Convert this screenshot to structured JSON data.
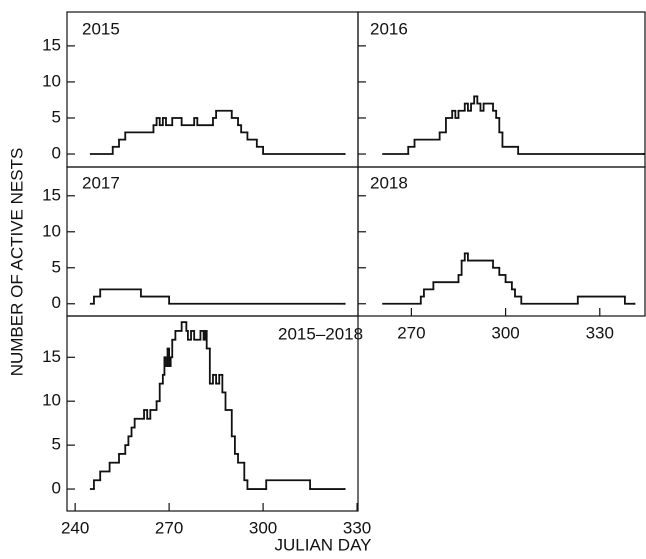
{
  "figure": {
    "xlabel": "JULIAN DAY",
    "ylabel": "NUMBER OF ACTIVE NESTS"
  },
  "chart_data": [
    {
      "type": "line",
      "drawstyle": "steps-post",
      "title": "2015",
      "color": "#111111",
      "x": [
        245,
        252,
        254,
        256,
        265,
        266,
        267,
        268,
        269,
        271,
        274,
        278,
        279,
        284,
        285,
        290,
        292,
        293,
        295,
        298,
        300,
        326
      ],
      "values": [
        0,
        1,
        2,
        3,
        4,
        5,
        4,
        5,
        4,
        5,
        4,
        5,
        4,
        5,
        6,
        5,
        4,
        3,
        2,
        1,
        0,
        0
      ],
      "xlim": [
        237.4,
        330.3
      ],
      "ylim": [
        -1.8,
        19.7
      ],
      "yticks": [
        0,
        5,
        10,
        15
      ]
    },
    {
      "type": "line",
      "drawstyle": "steps-post",
      "title": "2016",
      "color": "#111111",
      "x": [
        261,
        269,
        271,
        279,
        281,
        283,
        284,
        285,
        287,
        288,
        289,
        290,
        291,
        292,
        293,
        296,
        297,
        298,
        299,
        304,
        344
      ],
      "values": [
        0,
        1,
        2,
        3,
        5,
        6,
        5,
        6,
        7,
        6,
        7,
        8,
        7,
        6,
        7,
        6,
        5,
        3,
        1,
        0,
        0
      ],
      "xlim": [
        253.0,
        344.4
      ],
      "ylim": [
        -1.8,
        19.7
      ],
      "yticks": [
        0,
        5,
        10,
        15
      ]
    },
    {
      "type": "line",
      "drawstyle": "steps-post",
      "title": "2017",
      "color": "#111111",
      "x": [
        245,
        246,
        248,
        261,
        270,
        326
      ],
      "values": [
        0,
        1,
        2,
        1,
        0,
        0
      ],
      "xlim": [
        237.4,
        330.3
      ],
      "ylim": [
        -1.7,
        19.0
      ],
      "yticks": [
        0,
        5,
        10,
        15
      ]
    },
    {
      "type": "line",
      "drawstyle": "steps-post",
      "title": "2018",
      "color": "#111111",
      "x": [
        261,
        273,
        274,
        277,
        285,
        286,
        287,
        288,
        296,
        298,
        300,
        302,
        303,
        305,
        323,
        338,
        341
      ],
      "values": [
        0,
        1,
        2,
        3,
        4,
        6,
        7,
        6,
        5,
        4,
        3,
        2,
        1,
        0,
        1,
        0,
        0
      ],
      "xlim": [
        253.0,
        344.4
      ],
      "ylim": [
        -1.7,
        19.0
      ],
      "yticks": [
        0,
        5,
        10,
        15
      ],
      "xticks": [
        270,
        300,
        330
      ]
    },
    {
      "type": "line",
      "drawstyle": "steps-post",
      "title": "2015–2018",
      "color": "#111111",
      "x": [
        245,
        246,
        248,
        251,
        254,
        256,
        257,
        258,
        259,
        262,
        263,
        264,
        266,
        267,
        268,
        268.5,
        269,
        269.5,
        270,
        270.5,
        271,
        272,
        274,
        275.5,
        276,
        277,
        278,
        280,
        281,
        281.5,
        282,
        283,
        284,
        285,
        286,
        287,
        288,
        290,
        291,
        292,
        294,
        295,
        301,
        315,
        326
      ],
      "values": [
        0,
        1,
        2,
        3,
        4,
        5,
        6,
        7,
        8,
        9,
        8,
        9,
        10,
        12,
        13,
        15,
        14,
        16,
        14,
        15,
        17,
        18,
        19,
        18,
        17,
        18,
        17,
        18,
        17,
        18,
        16,
        12,
        13,
        12,
        13,
        11,
        9,
        6,
        4,
        3,
        1,
        0,
        1,
        0,
        0
      ],
      "xlim": [
        237.4,
        330.3
      ],
      "ylim": [
        -2.5,
        19.7
      ],
      "yticks": [
        0,
        5,
        10,
        15
      ],
      "xticks": [
        240,
        270,
        300,
        330
      ]
    }
  ]
}
